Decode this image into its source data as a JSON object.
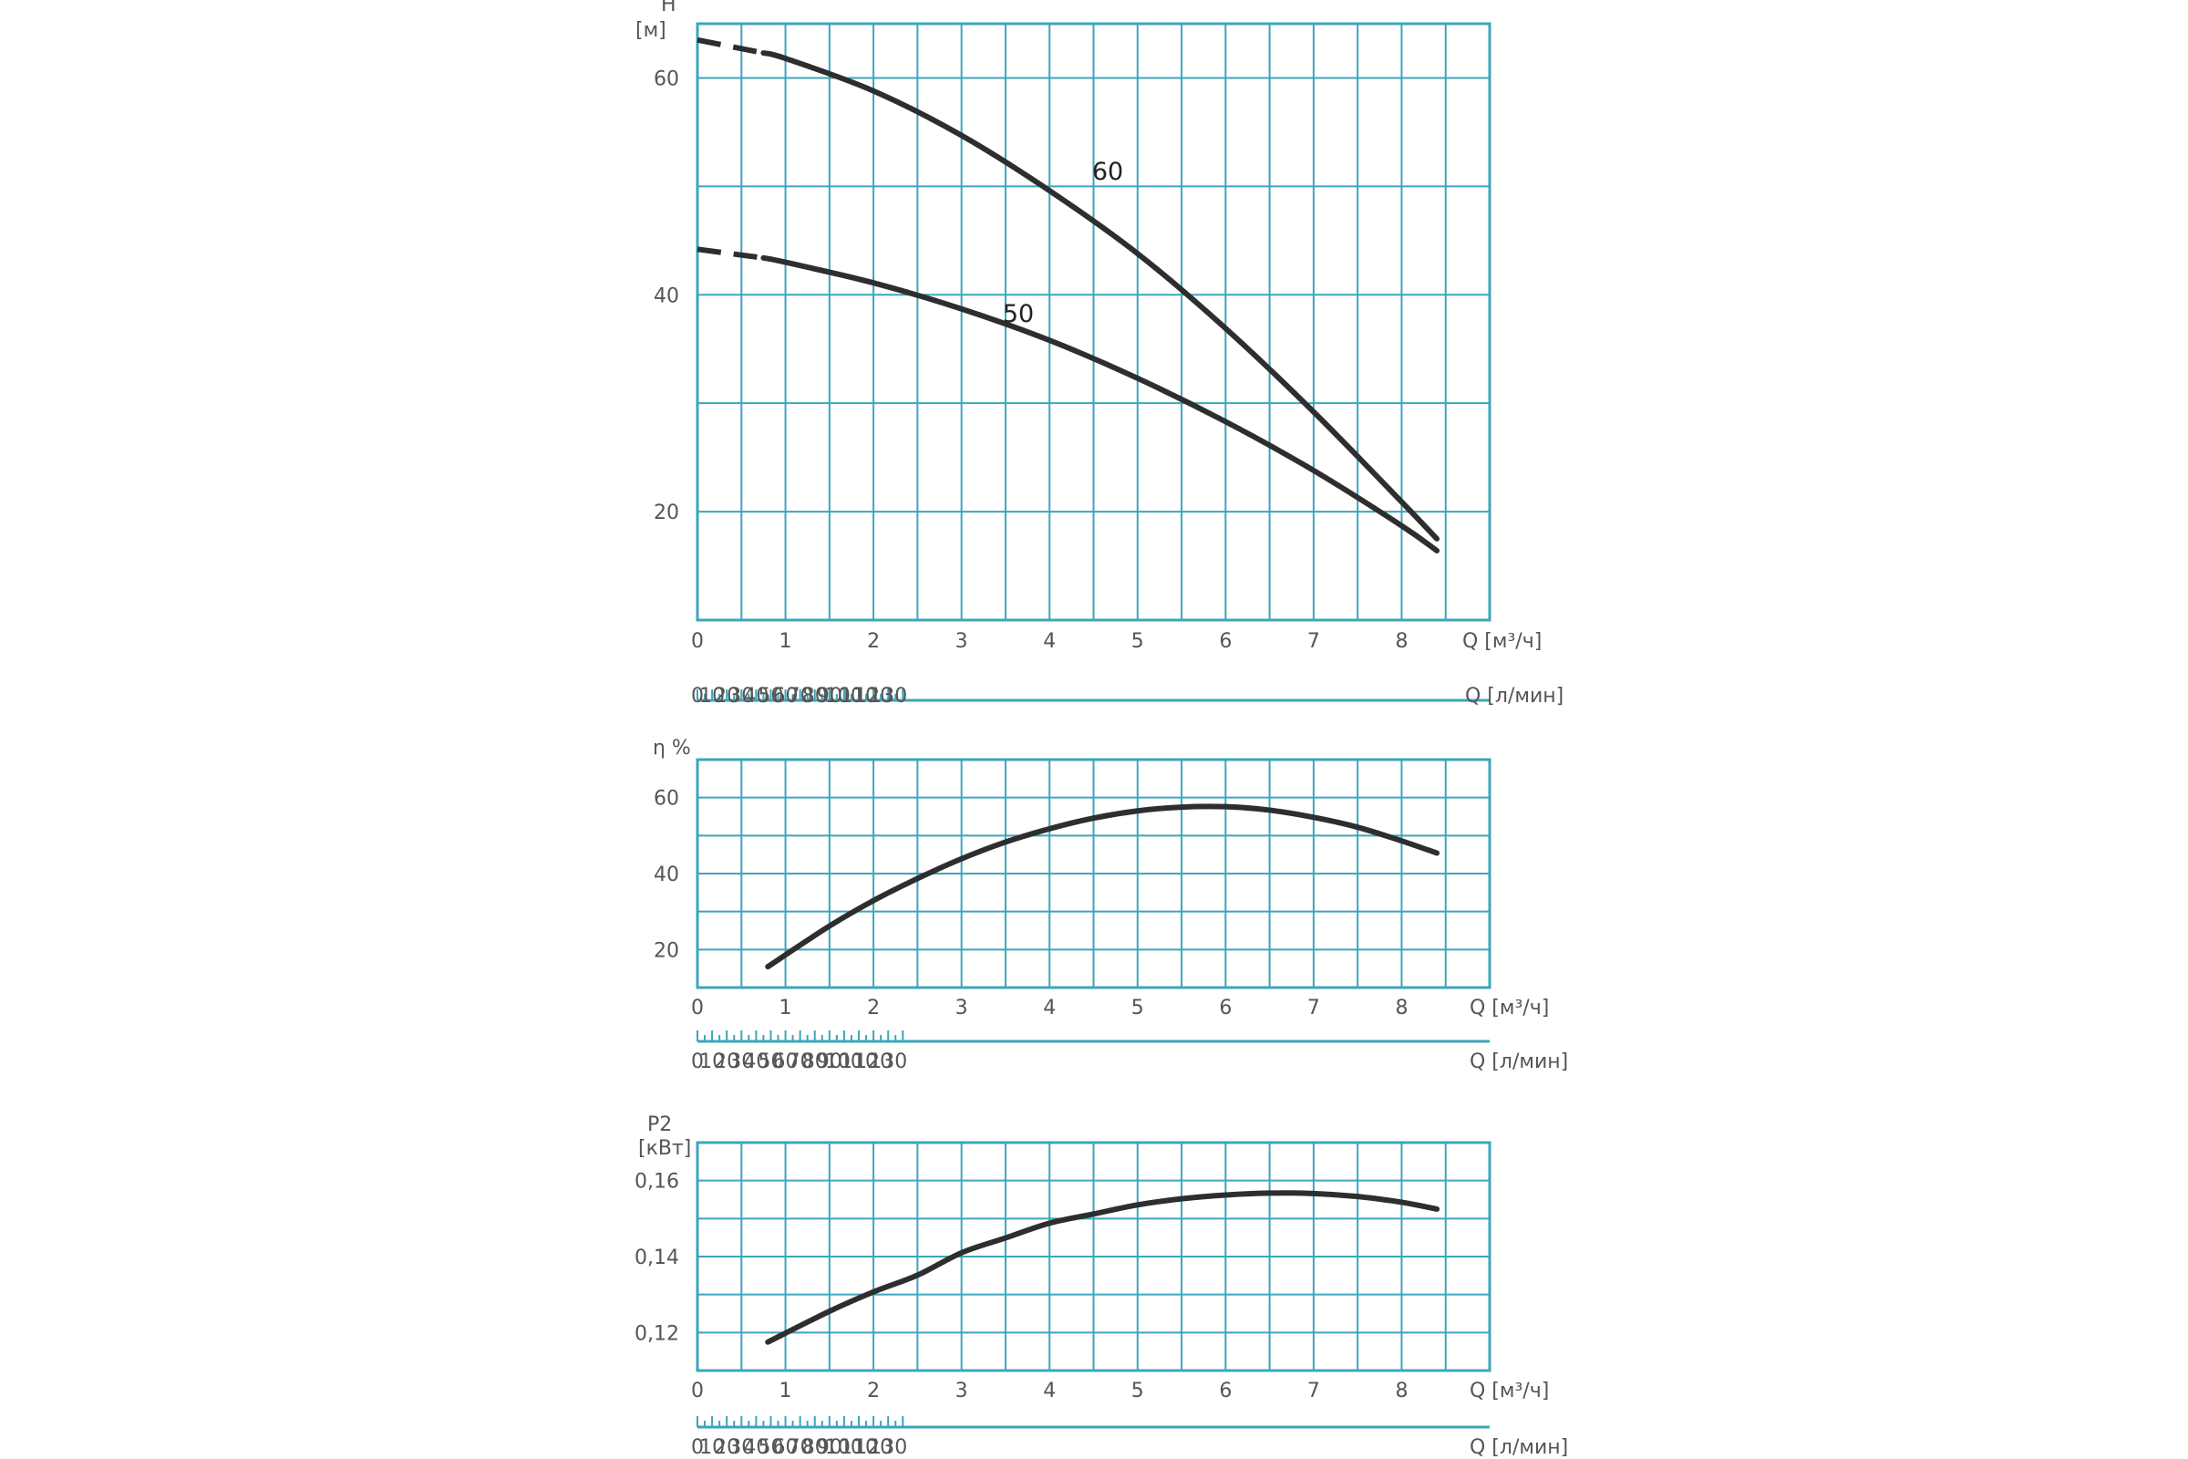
{
  "colors": {
    "grid": "#3ba6bb",
    "curve": "#2e2e2e",
    "text": "#555555",
    "background": "#ffffff"
  },
  "chart_data": [
    {
      "type": "line",
      "title": "",
      "ylabel": "H",
      "yunit": "[м]",
      "xlabel_top": "Q [м³/ч]",
      "xlabel_bottom": "Q [л/мин]",
      "xlim": [
        0,
        9
      ],
      "ylim": [
        10,
        65
      ],
      "x_ticks": [
        "0",
        "1",
        "2",
        "3",
        "4",
        "5",
        "6",
        "7",
        "8"
      ],
      "y_ticks": [
        "60",
        "40",
        "20"
      ],
      "secondary_x_ticks": [
        "0",
        "10",
        "20",
        "30",
        "40",
        "50",
        "60",
        "70",
        "80",
        "90",
        "100",
        "110",
        "120",
        "130"
      ],
      "grid": true,
      "series": [
        {
          "name": "60",
          "dashed_until": 0.75,
          "x": [
            0,
            0.75,
            1,
            2,
            3,
            4,
            5,
            6,
            7,
            8,
            8.4
          ],
          "y": [
            63.5,
            62.3,
            61.8,
            58.8,
            54.7,
            49.6,
            43.8,
            36.9,
            29.2,
            20.9,
            17.5
          ]
        },
        {
          "name": "50",
          "dashed_until": 0.75,
          "x": [
            0,
            0.75,
            1,
            2,
            3,
            4,
            5,
            6,
            7,
            8,
            8.4
          ],
          "y": [
            44.2,
            43.4,
            43.0,
            41.1,
            38.7,
            35.8,
            32.3,
            28.3,
            23.8,
            18.7,
            16.4
          ]
        }
      ]
    },
    {
      "type": "line",
      "title": "",
      "ylabel": "η %",
      "xlabel_top": "Q [м³/ч]",
      "xlabel_bottom": "Q [л/мин]",
      "xlim": [
        0,
        9
      ],
      "ylim": [
        10,
        70
      ],
      "x_ticks": [
        "0",
        "1",
        "2",
        "3",
        "4",
        "5",
        "6",
        "7",
        "8"
      ],
      "y_ticks": [
        "60",
        "40",
        "20"
      ],
      "secondary_x_ticks": [
        "0",
        "10",
        "20",
        "30",
        "40",
        "50",
        "60",
        "70",
        "80",
        "90",
        "100",
        "110",
        "120",
        "130"
      ],
      "grid": true,
      "series": [
        {
          "x": [
            0.8,
            1.5,
            2,
            2.5,
            3,
            3.5,
            4,
            4.5,
            5,
            5.5,
            6,
            6.5,
            7,
            7.5,
            8,
            8.4
          ],
          "y": [
            15.5,
            26.2,
            32.9,
            38.7,
            43.9,
            48.3,
            51.8,
            54.6,
            56.5,
            57.5,
            57.6,
            56.7,
            54.8,
            52.2,
            48.6,
            45.4
          ]
        }
      ]
    },
    {
      "type": "line",
      "title": "",
      "ylabel": "P2",
      "yunit": "[кВт]",
      "xlabel_top": "Q [м³/ч]",
      "xlabel_bottom": "Q [л/мин]",
      "xlim": [
        0,
        9
      ],
      "ylim": [
        0.11,
        0.17
      ],
      "x_ticks": [
        "0",
        "1",
        "2",
        "3",
        "4",
        "5",
        "6",
        "7",
        "8"
      ],
      "y_ticks": [
        "0,16",
        "0,14",
        "0,12"
      ],
      "secondary_x_ticks": [
        "0",
        "10",
        "20",
        "30",
        "40",
        "50",
        "60",
        "70",
        "80",
        "90",
        "100",
        "110",
        "120",
        "130"
      ],
      "grid": true,
      "series": [
        {
          "x": [
            0.8,
            1.5,
            2,
            2.5,
            3,
            3.5,
            4,
            4.5,
            5,
            5.5,
            6,
            6.5,
            7,
            7.5,
            8,
            8.4
          ],
          "y": [
            0.1175,
            0.1256,
            0.1307,
            0.1351,
            0.141,
            0.1449,
            0.1488,
            0.1512,
            0.1536,
            0.1552,
            0.1562,
            0.1567,
            0.1566,
            0.1558,
            0.1543,
            0.1525
          ]
        }
      ]
    }
  ]
}
